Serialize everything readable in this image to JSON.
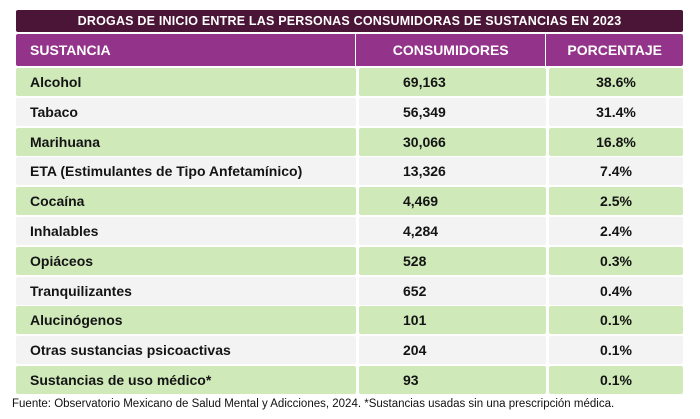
{
  "title": "DROGAS DE INICIO ENTRE LAS PERSONAS CONSUMIDORAS DE SUSTANCIAS EN 2023",
  "columns": {
    "substance": "SUSTANCIA",
    "consumers": "CONSUMIDORES",
    "percentage": "PORCENTAJE"
  },
  "rows": [
    {
      "substance": "Alcohol",
      "consumers": "69,163",
      "percentage": "38.6%"
    },
    {
      "substance": "Tabaco",
      "consumers": "56,349",
      "percentage": "31.4%"
    },
    {
      "substance": "Marihuana",
      "consumers": "30,066",
      "percentage": "16.8%"
    },
    {
      "substance": "ETA (Estimulantes de Tipo Anfetamínico)",
      "consumers": "13,326",
      "percentage": "7.4%"
    },
    {
      "substance": "Cocaína",
      "consumers": "4,469",
      "percentage": "2.5%"
    },
    {
      "substance": "Inhalables",
      "consumers": "4,284",
      "percentage": "2.4%"
    },
    {
      "substance": "Opiáceos",
      "consumers": "528",
      "percentage": "0.3%"
    },
    {
      "substance": "Tranquilizantes",
      "consumers": "652",
      "percentage": "0.4%"
    },
    {
      "substance": "Alucinógenos",
      "consumers": "101",
      "percentage": "0.1%"
    },
    {
      "substance": "Otras sustancias psicoactivas",
      "consumers": "204",
      "percentage": "0.1%"
    },
    {
      "substance": "Sustancias de uso médico*",
      "consumers": "93",
      "percentage": "0.1%"
    }
  ],
  "source": "Fuente: Observatorio Mexicano de Salud Mental y Adicciones, 2024. *Sustancias usadas sin una prescripción médica.",
  "colors": {
    "banner": "#4a1536",
    "header": "#94338a",
    "row_green": "#cfe9b9",
    "row_light": "#f3f3f3"
  }
}
